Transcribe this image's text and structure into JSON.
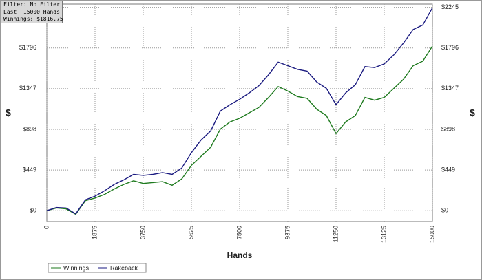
{
  "chart_data": {
    "type": "line",
    "annotations": [
      "Filter: No Filter",
      "Last  15000 Hands",
      "Winnings: $1816.75"
    ],
    "xlabel": "Hands",
    "ylabel": "$",
    "x": [
      0,
      375,
      750,
      1125,
      1500,
      1875,
      2250,
      2625,
      3000,
      3375,
      3750,
      4125,
      4500,
      4875,
      5250,
      5625,
      6000,
      6375,
      6750,
      7125,
      7500,
      7875,
      8250,
      8625,
      9000,
      9375,
      9750,
      10125,
      10500,
      10875,
      11250,
      11625,
      12000,
      12375,
      12750,
      13125,
      13500,
      13875,
      14250,
      14625,
      15000
    ],
    "series": [
      {
        "name": "Winnings",
        "color": "#1e7a1e",
        "values": [
          0,
          30,
          20,
          -40,
          110,
          140,
          180,
          240,
          290,
          330,
          300,
          310,
          320,
          280,
          350,
          500,
          600,
          700,
          900,
          980,
          1020,
          1080,
          1140,
          1250,
          1370,
          1320,
          1260,
          1240,
          1120,
          1050,
          850,
          980,
          1050,
          1250,
          1220,
          1250,
          1350,
          1450,
          1600,
          1650,
          1817
        ]
      },
      {
        "name": "Rakeback",
        "color": "#1a1a80",
        "values": [
          0,
          35,
          30,
          -35,
          120,
          160,
          220,
          290,
          340,
          400,
          390,
          400,
          420,
          400,
          470,
          640,
          780,
          880,
          1100,
          1170,
          1230,
          1300,
          1380,
          1500,
          1640,
          1600,
          1560,
          1540,
          1420,
          1350,
          1170,
          1300,
          1390,
          1590,
          1580,
          1620,
          1720,
          1850,
          2000,
          2050,
          2240
        ]
      }
    ],
    "xlim": [
      0,
      15000
    ],
    "xticks": [
      0,
      1875,
      3750,
      5625,
      7500,
      9375,
      11250,
      13125,
      15000
    ],
    "ylim": [
      -120,
      2280
    ],
    "yticks": [
      {
        "value": 0,
        "label": "$0"
      },
      {
        "value": 449,
        "label": "$449"
      },
      {
        "value": 898,
        "label": "$898"
      },
      {
        "value": 1347,
        "label": "$1347"
      },
      {
        "value": 1796,
        "label": "$1796"
      },
      {
        "value": 2245,
        "label": "$2245"
      }
    ],
    "grid": true,
    "legend": "bottom-left"
  }
}
